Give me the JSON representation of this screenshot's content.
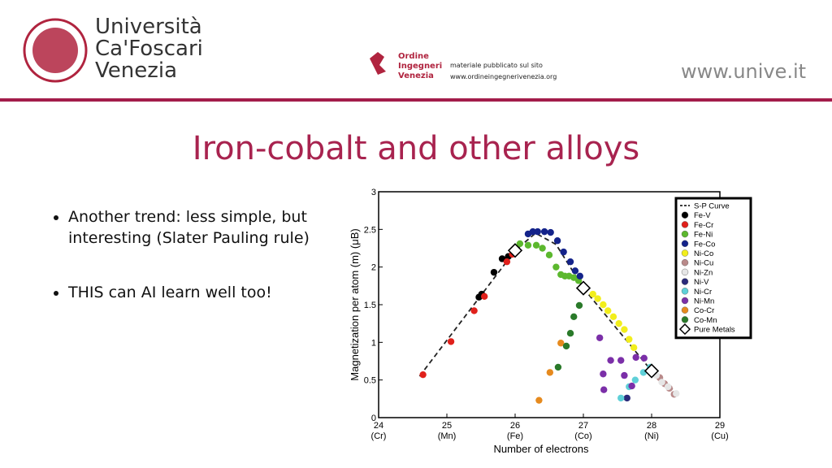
{
  "header": {
    "university": [
      "Università",
      "Ca'Foscari",
      "Venezia"
    ],
    "ordine": [
      "Ordine",
      "Ingegneri",
      "Venezia"
    ],
    "note": [
      "materiale pubblicato sul sito",
      "www.ordineingegnerivenezia.org"
    ],
    "website": "www.unive.it"
  },
  "slide": {
    "title": "Iron-cobalt and other alloys",
    "bullets": [
      "Another trend: less simple, but interesting (Slater Pauling rule)",
      "THIS can AI learn well too!"
    ]
  },
  "chart_data": {
    "type": "scatter",
    "xlabel": "Number of electrons",
    "ylabel": "Magnetization per atom (m) (μB)",
    "xlim": [
      24,
      29
    ],
    "ylim": [
      0,
      3
    ],
    "xticks": [
      24,
      25,
      26,
      27,
      28,
      29
    ],
    "xtick_sublabels": [
      "(Cr)",
      "(Mn)",
      "(Fe)",
      "(Co)",
      "(Ni)",
      "(Cu)"
    ],
    "yticks": [
      0,
      0.5,
      1,
      1.5,
      2,
      2.5,
      3
    ],
    "legend": "upper right",
    "series": [
      {
        "name": "S-P Curve",
        "marker": "line",
        "color": "#222222",
        "x": [
          24.6,
          26.0,
          26.3,
          26.6,
          27.0,
          28.0,
          28.4
        ],
        "values": [
          0.55,
          2.22,
          2.45,
          2.3,
          1.72,
          0.62,
          0.3
        ]
      },
      {
        "name": "Fe-V",
        "marker": "circle",
        "color": "#000000",
        "x": [
          25.51,
          25.47,
          25.69,
          25.81,
          25.9
        ],
        "values": [
          1.64,
          1.6,
          1.93,
          2.11,
          2.14
        ]
      },
      {
        "name": "Fe-Cr",
        "marker": "circle",
        "color": "#e0201b",
        "x": [
          24.65,
          25.06,
          25.4,
          25.55,
          25.88,
          25.96
        ],
        "values": [
          0.57,
          1.01,
          1.42,
          1.61,
          2.07,
          2.17
        ]
      },
      {
        "name": "Fe-Ni",
        "marker": "circle",
        "color": "#5cb82e",
        "x": [
          26.07,
          26.19,
          26.31,
          26.4,
          26.5,
          26.6,
          26.67,
          26.73,
          26.79,
          26.86,
          26.93
        ],
        "values": [
          2.31,
          2.29,
          2.29,
          2.25,
          2.16,
          2.0,
          1.9,
          1.88,
          1.88,
          1.86,
          1.82
        ]
      },
      {
        "name": "Fe-Co",
        "marker": "circle",
        "color": "#14238a",
        "x": [
          26.19,
          26.26,
          26.33,
          26.43,
          26.52,
          26.62,
          26.71,
          26.81,
          26.88,
          26.95
        ],
        "values": [
          2.44,
          2.47,
          2.47,
          2.47,
          2.46,
          2.35,
          2.2,
          2.07,
          1.95,
          1.88
        ]
      },
      {
        "name": "Ni-Co",
        "marker": "circle",
        "color": "#f2ee1c",
        "x": [
          27.14,
          27.21,
          27.29,
          27.36,
          27.44,
          27.52,
          27.6,
          27.67,
          27.74
        ],
        "values": [
          1.64,
          1.58,
          1.5,
          1.42,
          1.34,
          1.25,
          1.17,
          1.04,
          0.93
        ]
      },
      {
        "name": "Ni-Cu",
        "marker": "circle",
        "color": "#b98a8a",
        "x": [
          28.12,
          28.19,
          28.26,
          28.33
        ],
        "values": [
          0.53,
          0.45,
          0.39,
          0.31
        ]
      },
      {
        "name": "Ni-Zn",
        "marker": "circle",
        "color": "#e6e6e6",
        "x": [
          28.07,
          28.15,
          28.24,
          28.36
        ],
        "values": [
          0.56,
          0.47,
          0.41,
          0.32
        ]
      },
      {
        "name": "Ni-V",
        "marker": "circle",
        "color": "#2a2a7a",
        "x": [
          27.64
        ],
        "values": [
          0.26
        ]
      },
      {
        "name": "Ni-Cr",
        "marker": "circle",
        "color": "#5fd0d8",
        "x": [
          27.55,
          27.67,
          27.76,
          27.88,
          27.98
        ],
        "values": [
          0.26,
          0.41,
          0.5,
          0.6,
          0.67
        ]
      },
      {
        "name": "Ni-Mn",
        "marker": "circle",
        "color": "#7b2fa8",
        "x": [
          27.24,
          27.29,
          27.4,
          27.55,
          27.6,
          27.71,
          27.77,
          27.89,
          27.3
        ],
        "values": [
          1.06,
          0.58,
          0.76,
          0.76,
          0.56,
          0.42,
          0.8,
          0.79,
          0.37
        ]
      },
      {
        "name": "Co-Cr",
        "marker": "circle",
        "color": "#e68a1e",
        "x": [
          26.35,
          26.51,
          26.67
        ],
        "values": [
          0.23,
          0.6,
          0.99
        ]
      },
      {
        "name": "Co-Mn",
        "marker": "circle",
        "color": "#2a7a2a",
        "x": [
          26.63,
          26.75,
          26.81,
          26.86,
          26.94
        ],
        "values": [
          0.67,
          0.95,
          1.12,
          1.34,
          1.49
        ]
      },
      {
        "name": "Pure Metals",
        "marker": "diamond",
        "color": "#000000",
        "x": [
          26,
          27,
          28
        ],
        "values": [
          2.22,
          1.72,
          0.62
        ]
      }
    ]
  }
}
